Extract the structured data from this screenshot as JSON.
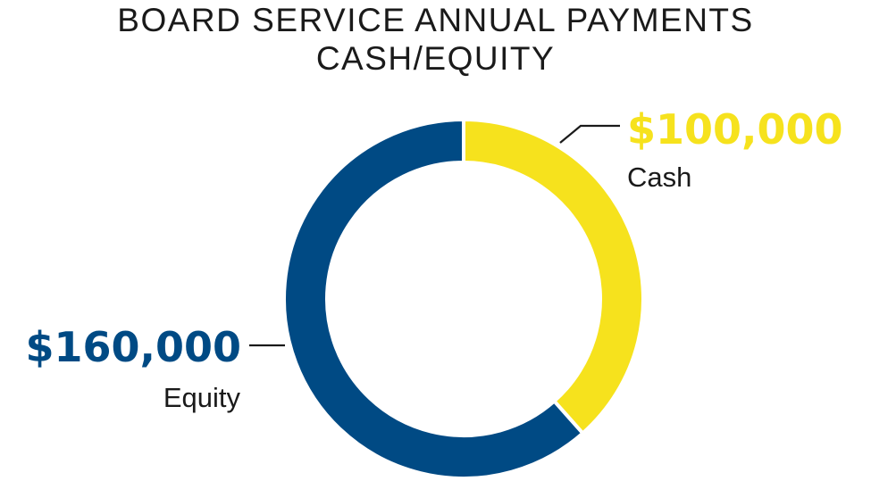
{
  "chart_data": {
    "type": "pie",
    "title_lines": [
      "BOARD SERVICE ANNUAL PAYMENTS",
      "CASH/EQUITY"
    ],
    "slices": [
      {
        "name": "Cash",
        "value_label": "$100,000",
        "value": 100000,
        "color": "#f6e21d"
      },
      {
        "name": "Equity",
        "value_label": "$160,000",
        "value": 160000,
        "color": "#004a84"
      }
    ],
    "donut": true,
    "start": "top, clockwise",
    "grid": false,
    "legend": "none (direct labels)"
  }
}
